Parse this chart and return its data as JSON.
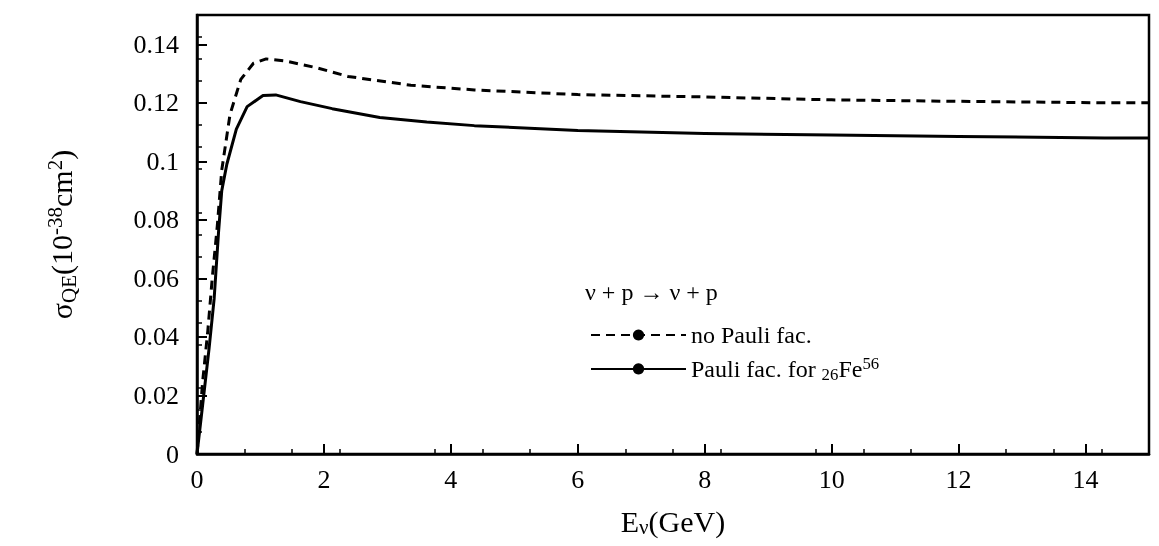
{
  "chart_data": {
    "type": "line",
    "xlabel": "E$_{ν}$(GeV)",
    "ylabel": "σ$_{QE}$(10$^{-38}$cm$^{2}$)",
    "legend_title": "ν + p → ν + p",
    "legend": "bottom right",
    "xlim": [
      0,
      15
    ],
    "xticks": [
      0,
      2,
      4,
      6,
      8,
      10,
      12,
      14
    ],
    "ylim": [
      0,
      0.15
    ],
    "yticks": [
      0,
      0.02,
      0.04,
      0.06,
      0.08,
      0.1,
      0.12,
      0.14
    ],
    "grid": false,
    "series": [
      {
        "name": "no Pauli fac.",
        "color": "#000000",
        "line_style": "dashed",
        "x": [
          0,
          0.09,
          0.17,
          0.24,
          0.32,
          0.39,
          0.52,
          0.69,
          0.89,
          1.09,
          1.39,
          1.88,
          2.38,
          3.37,
          4.37,
          6,
          8,
          10,
          12,
          14.3,
          15
        ],
        "values": [
          0,
          0.025,
          0.042,
          0.06,
          0.078,
          0.097,
          0.116,
          0.128,
          0.1335,
          0.135,
          0.1343,
          0.132,
          0.129,
          0.126,
          0.1244,
          0.1228,
          0.122,
          0.121,
          0.1205,
          0.12,
          0.12
        ]
      },
      {
        "name": "Pauli fac. for $_{26}$Fe$^{56}$",
        "color": "#000000",
        "line_style": "solid",
        "x": [
          0,
          0.09,
          0.19,
          0.27,
          0.34,
          0.39,
          0.47,
          0.62,
          0.79,
          1.04,
          1.24,
          1.63,
          2.13,
          2.88,
          3.62,
          4.37,
          6,
          8,
          10,
          12,
          14.3,
          15
        ],
        "values": [
          0,
          0.017,
          0.036,
          0.053,
          0.076,
          0.09,
          0.099,
          0.111,
          0.1187,
          0.1225,
          0.1227,
          0.1204,
          0.118,
          0.115,
          0.1134,
          0.1122,
          0.1105,
          0.1095,
          0.109,
          0.1085,
          0.108,
          0.108
        ]
      }
    ]
  }
}
